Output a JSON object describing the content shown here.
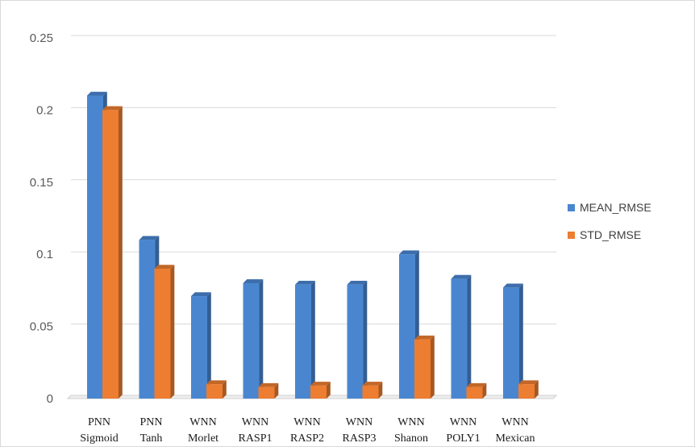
{
  "chart_data": {
    "type": "bar",
    "style": "3d-clustered-column",
    "categories": [
      [
        "PNN",
        "Sigmoid"
      ],
      [
        "PNN",
        "Tanh"
      ],
      [
        "WNN",
        "Morlet"
      ],
      [
        "WNN",
        "RASP1"
      ],
      [
        "WNN",
        "RASP2"
      ],
      [
        "WNN",
        "RASP3"
      ],
      [
        "WNN",
        "Shanon"
      ],
      [
        "WNN",
        "POLY1"
      ],
      [
        "WNN",
        "Mexican"
      ]
    ],
    "series": [
      {
        "name": "MEAN_RMSE",
        "color": "#4a86d0",
        "values": [
          0.21,
          0.11,
          0.071,
          0.08,
          0.079,
          0.079,
          0.1,
          0.083,
          0.077
        ]
      },
      {
        "name": "STD_RMSE",
        "color": "#ed7d31",
        "values": [
          0.2,
          0.09,
          0.01,
          0.008,
          0.009,
          0.009,
          0.041,
          0.008,
          0.01
        ]
      }
    ],
    "yticks": [
      "0",
      "0.05",
      "0.1",
      "0.15",
      "0.2",
      "0.25"
    ],
    "ylim": [
      0,
      0.25
    ],
    "grid": true,
    "legend_position": "right",
    "title": "",
    "xlabel": "",
    "ylabel": ""
  }
}
